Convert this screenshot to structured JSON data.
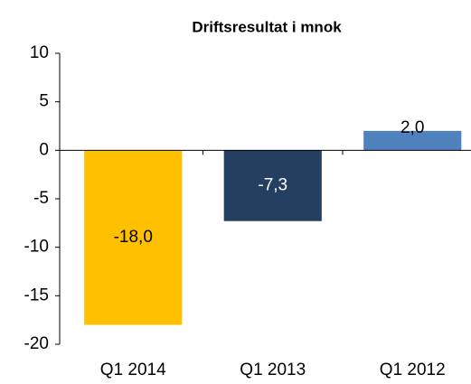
{
  "chart_data": {
    "type": "bar",
    "title": "Driftsresultat i mnok",
    "categories": [
      "Q1 2014",
      "Q1 2013",
      "Q1 2012"
    ],
    "values": [
      -18.0,
      -7.3,
      2.0
    ],
    "value_labels": [
      "-18,0",
      "-7,3",
      "2,0"
    ],
    "colors": [
      "#ffc000",
      "#243f60",
      "#4f81bd"
    ],
    "ylim": [
      -20,
      10
    ],
    "yticks": [
      10,
      5,
      0,
      -5,
      -10,
      -15,
      -20
    ],
    "grid": false
  }
}
